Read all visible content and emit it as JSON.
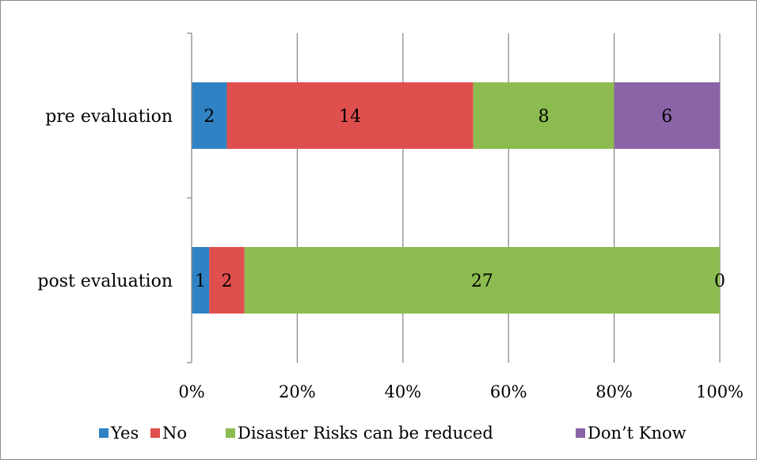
{
  "chart_data": {
    "type": "bar",
    "orientation": "horizontal",
    "stacking": "percent",
    "categories": [
      "pre evaluation",
      "post evaluation"
    ],
    "series": [
      {
        "name": "Yes",
        "values": [
          2,
          1
        ],
        "color": "#2f83c4"
      },
      {
        "name": "No",
        "values": [
          14,
          2
        ],
        "color": "#df4f4e"
      },
      {
        "name": "Disaster Risks can be reduced",
        "values": [
          8,
          27
        ],
        "color": "#8cbb50"
      },
      {
        "name": "Don’t Know",
        "values": [
          6,
          0
        ],
        "color": "#8a64a6"
      }
    ],
    "xlim": [
      0,
      100
    ],
    "x_ticks": [
      "0%",
      "20%",
      "40%",
      "60%",
      "80%",
      "100%"
    ],
    "grid": true,
    "legend": "bottom",
    "title": "",
    "xlabel": "",
    "ylabel": ""
  }
}
